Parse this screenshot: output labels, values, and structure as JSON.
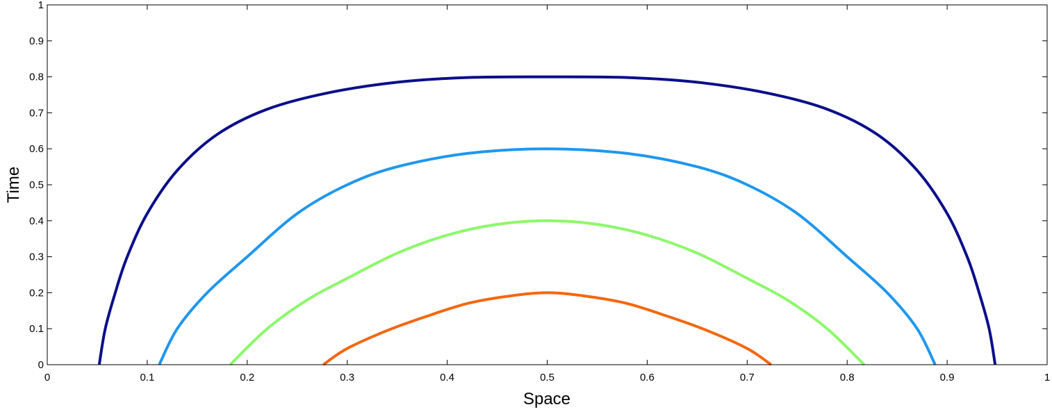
{
  "chart_data": {
    "type": "line",
    "title": "",
    "xlabel": "Space",
    "ylabel": "Time",
    "xlim": [
      0,
      1
    ],
    "ylim": [
      0,
      1
    ],
    "xticks": [
      "0",
      "0.1",
      "0.2",
      "0.3",
      "0.4",
      "0.5",
      "0.6",
      "0.7",
      "0.8",
      "0.9",
      "1"
    ],
    "yticks": [
      "0",
      "0.1",
      "0.2",
      "0.3",
      "0.4",
      "0.5",
      "0.6",
      "0.7",
      "0.8",
      "0.9",
      "1"
    ],
    "grid": false,
    "legend": null,
    "series": [
      {
        "color": "#0b0f8a",
        "x": [
          0.052,
          0.058,
          0.068,
          0.08,
          0.1,
          0.13,
          0.17,
          0.22,
          0.28,
          0.35,
          0.42,
          0.5,
          0.58,
          0.65,
          0.72,
          0.78,
          0.83,
          0.87,
          0.9,
          0.92,
          0.932,
          0.942,
          0.948
        ],
        "y": [
          0.0,
          0.1,
          0.2,
          0.3,
          0.42,
          0.54,
          0.64,
          0.71,
          0.755,
          0.785,
          0.798,
          0.8,
          0.798,
          0.785,
          0.755,
          0.71,
          0.64,
          0.54,
          0.42,
          0.3,
          0.2,
          0.1,
          0.0
        ]
      },
      {
        "color": "#1f97ef",
        "x": [
          0.112,
          0.13,
          0.16,
          0.2,
          0.25,
          0.3,
          0.35,
          0.42,
          0.5,
          0.58,
          0.65,
          0.7,
          0.75,
          0.8,
          0.84,
          0.87,
          0.888
        ],
        "y": [
          0.0,
          0.1,
          0.2,
          0.3,
          0.42,
          0.5,
          0.55,
          0.587,
          0.6,
          0.587,
          0.55,
          0.5,
          0.42,
          0.3,
          0.2,
          0.1,
          0.0
        ]
      },
      {
        "color": "#8cf86a",
        "x": [
          0.183,
          0.22,
          0.26,
          0.3,
          0.35,
          0.4,
          0.45,
          0.5,
          0.55,
          0.6,
          0.65,
          0.7,
          0.74,
          0.78,
          0.817
        ],
        "y": [
          0.0,
          0.1,
          0.18,
          0.24,
          0.31,
          0.36,
          0.39,
          0.4,
          0.39,
          0.36,
          0.31,
          0.24,
          0.18,
          0.1,
          0.0
        ]
      },
      {
        "color": "#f4670f",
        "x": [
          0.276,
          0.3,
          0.34,
          0.38,
          0.42,
          0.46,
          0.5,
          0.54,
          0.58,
          0.62,
          0.66,
          0.7,
          0.724
        ],
        "y": [
          0.0,
          0.045,
          0.095,
          0.135,
          0.17,
          0.19,
          0.2,
          0.19,
          0.17,
          0.135,
          0.095,
          0.045,
          0.0
        ]
      }
    ]
  }
}
